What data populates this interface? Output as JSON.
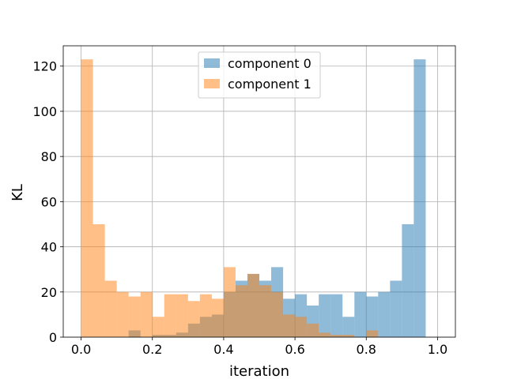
{
  "chart_data": {
    "type": "bar",
    "xlabel": "iteration",
    "ylabel": "KL",
    "xlim": [
      -0.05,
      1.05
    ],
    "ylim": [
      0,
      129
    ],
    "xticks": [
      "0.0",
      "0.2",
      "0.4",
      "0.6",
      "0.8",
      "1.0"
    ],
    "yticks": [
      "0",
      "20",
      "40",
      "60",
      "80",
      "100",
      "120"
    ],
    "grid": true,
    "legend_position": "upper center",
    "bin_edges": [
      0,
      0.0333,
      0.0667,
      0.1,
      0.1333,
      0.1667,
      0.2,
      0.2333,
      0.2667,
      0.3,
      0.3333,
      0.3667,
      0.4,
      0.4333,
      0.4667,
      0.5,
      0.5333,
      0.5667,
      0.6,
      0.6333,
      0.6667,
      0.7,
      0.7333,
      0.7667,
      0.8,
      0.8333,
      0.8667,
      0.9,
      0.9333,
      0.9667,
      1.0
    ],
    "series": [
      {
        "name": "component 0",
        "color": "#1f77b4",
        "values": [
          0,
          0,
          0,
          0,
          3,
          0,
          1,
          1,
          2,
          6,
          9,
          10,
          20,
          25,
          28,
          25,
          31,
          17,
          19,
          14,
          19,
          19,
          9,
          20,
          18,
          20,
          25,
          50,
          123,
          0
        ]
      },
      {
        "name": "component 1",
        "color": "#ff7f0e",
        "values": [
          123,
          50,
          25,
          20,
          18,
          20,
          9,
          19,
          19,
          16,
          19,
          17,
          31,
          23,
          28,
          23,
          20,
          10,
          9,
          6,
          2,
          1,
          1,
          0,
          3,
          0,
          0,
          0,
          0,
          0
        ]
      }
    ]
  }
}
